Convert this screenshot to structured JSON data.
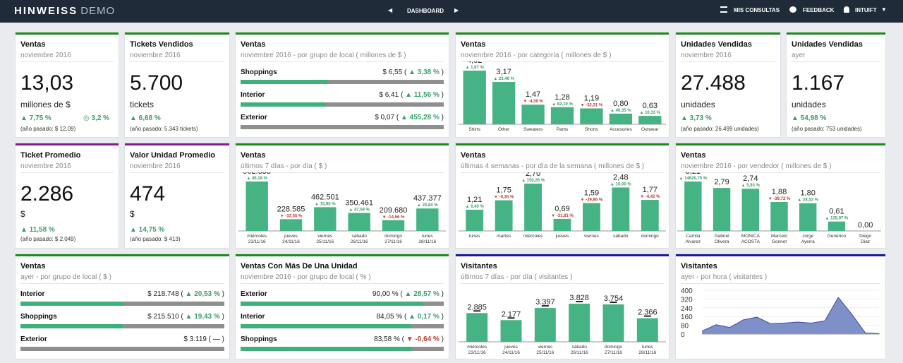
{
  "header": {
    "logo": "HINWEISS",
    "logo_demo": "DEMO",
    "center_label": "DASHBOARD",
    "mis_consultas": "MIS CONSULTAS",
    "feedback": "FEEDBACK",
    "user": "INTUIFT"
  },
  "colors": {
    "bar": "#45b384",
    "green_border": "#1a8a1a",
    "purple_border": "#8a1a8f",
    "blue_border": "#1a1aa0",
    "topbar": "#1f2b38"
  },
  "kpi": {
    "ventas": {
      "title": "Ventas",
      "sub": "noviembre 2016",
      "value": "13,03",
      "unit": "millones de $",
      "chg": "▲ 7,75 %",
      "chg2": "◎ 3,2 %",
      "prev": "(año pasado: $ 12,09)"
    },
    "tickets": {
      "title": "Tickets Vendidos",
      "sub": "noviembre 2016",
      "value": "5.700",
      "unit": "tickets",
      "chg": "▲ 6,68 %",
      "prev": "(año pasado: 5.343 tickets)"
    },
    "unidades_mes": {
      "title": "Unidades Vendidas",
      "sub": "noviembre 2016",
      "value": "27.488",
      "unit": "unidades",
      "chg": "▲ 3,73 %",
      "prev": "(año pasado: 26.499 unidades)"
    },
    "unidades_ayer": {
      "title": "Unidades Vendidas",
      "sub": "ayer",
      "value": "1.167",
      "unit": "unidades",
      "chg": "▲ 54,98 %",
      "prev": "(año pasado: 753 unidades)"
    },
    "ticket_prom": {
      "title": "Ticket Promedio",
      "sub": "noviembre 2016",
      "value": "2.286",
      "unit": "$",
      "chg": "▲ 11,58 %",
      "prev": "(año pasado: $ 2.049)"
    },
    "valor_unidad": {
      "title": "Valor Unidad Promedio",
      "sub": "noviembre 2016",
      "value": "474",
      "unit": "$",
      "chg": "▲ 14,75 %",
      "prev": "(año pasado: $ 413)"
    }
  },
  "lists": {
    "grupo_local_mes": {
      "title": "Ventas",
      "sub": "noviembre 2016 - por grupo de local ( millones de $ )",
      "rows": [
        {
          "label": "Shoppings",
          "value": "$ 6,55",
          "chg": "▲ 3,38 %",
          "dir": "up",
          "frac": 0.43
        },
        {
          "label": "Interior",
          "value": "$ 6,41",
          "chg": "▲ 11,56 %",
          "dir": "up",
          "frac": 0.42
        },
        {
          "label": "Exterior",
          "value": "$ 0,07",
          "chg": "▲ 455,28 %",
          "dir": "up",
          "frac": 0.005
        }
      ]
    },
    "grupo_local_ayer": {
      "title": "Ventas",
      "sub": "ayer - por grupo de local ( $ )",
      "rows": [
        {
          "label": "Interior",
          "value": "$ 218.748",
          "chg": "▲ 20,53 %",
          "dir": "up",
          "frac": 0.5
        },
        {
          "label": "Shoppings",
          "value": "$ 215.510",
          "chg": "▲ 19,43 %",
          "dir": "up",
          "frac": 0.5
        },
        {
          "label": "Exterior",
          "value": "$ 3.119",
          "chg": "—",
          "dir": "flat",
          "frac": 0.0
        }
      ]
    },
    "mas_unidad": {
      "title": "Ventas Con Más De Una Unidad",
      "sub": "noviembre 2016 - por grupo de local ( % )",
      "rows": [
        {
          "label": "Exterior",
          "value": "90,00 %",
          "chg": "▲ 28,57 %",
          "dir": "up",
          "frac": 0.9
        },
        {
          "label": "Interior",
          "value": "84,05 %",
          "chg": "▲ 0,17 %",
          "dir": "up",
          "frac": 0.84
        },
        {
          "label": "Shoppings",
          "value": "83,58 %",
          "chg": "▼ -0,64 %",
          "dir": "down",
          "frac": 0.84
        }
      ]
    }
  },
  "chart_data": [
    {
      "id": "categoria",
      "type": "bar",
      "title": "Ventas",
      "subtitle": "noviembre 2016 - por categoría ( millones de $ )",
      "categories": [
        "Shirts",
        "Other",
        "Sweaters",
        "Pants",
        "Shorts",
        "Accesories",
        "Outwear"
      ],
      "values": [
        4.02,
        3.17,
        1.47,
        1.28,
        1.19,
        0.8,
        0.63
      ],
      "labels": [
        "4,02",
        "3,17",
        "1,47",
        "1,28",
        "1,19",
        "0,80",
        "0,63"
      ],
      "changes": [
        "▲ 1,67 %",
        "▲ 23,46 %",
        "▼ -4,39 %",
        "▲ 82,19 %",
        "▼ -32,31 %",
        "▲ 40,35 %",
        "▲ 10,33 %"
      ],
      "dirs": [
        "up",
        "up",
        "down",
        "up",
        "down",
        "up",
        "up"
      ],
      "ylim": [
        0,
        4.02
      ]
    },
    {
      "id": "dia",
      "type": "bar",
      "title": "Ventas",
      "subtitle": "últimos 7 días - por día ( $ )",
      "categories": [
        "miércoles 23/11/16",
        "jueves 24/11/16",
        "viernes 25/11/16",
        "sábado 26/11/16",
        "domingo 27/11/16",
        "lunes 28/11/16"
      ],
      "values": [
        962833,
        228585,
        462501,
        350461,
        209680,
        437377
      ],
      "labels": [
        "962.833",
        "228.585",
        "462.501",
        "350.461",
        "209.680",
        "437.377"
      ],
      "changes": [
        "▲ 45,18 %",
        "▼ -32,55 %",
        "▲ 15,95 %",
        "▲ 47,59 %",
        "▼ -14,56 %",
        "▲ 20,84 %"
      ],
      "dirs": [
        "up",
        "down",
        "up",
        "up",
        "down",
        "up"
      ],
      "ylim": [
        0,
        962833
      ]
    },
    {
      "id": "semana",
      "type": "bar",
      "title": "Ventas",
      "subtitle": "últimas 4 semanas - por día de la semana ( millones de $ )",
      "categories": [
        "lunes",
        "martes",
        "miércoles",
        "jueves",
        "viernes",
        "sábado",
        "domingo"
      ],
      "values": [
        1.21,
        1.75,
        2.7,
        0.69,
        1.59,
        2.48,
        1.77
      ],
      "labels": [
        "1,21",
        "1,75",
        "2,70",
        "0,69",
        "1,59",
        "2,48",
        "1,77"
      ],
      "changes": [
        "▲ 6,40 %",
        "▼ -0,35 %",
        "▲ 150,26 %",
        "▼ -31,81 %",
        "▼ -29,86 %",
        "▲ 10,00 %",
        "▼ -4,42 %"
      ],
      "dirs": [
        "up",
        "down",
        "up",
        "down",
        "down",
        "up",
        "down"
      ],
      "ylim": [
        0,
        2.7
      ]
    },
    {
      "id": "vendedor",
      "type": "bar",
      "title": "Ventas",
      "subtitle": "noviembre 2016 - por vendedor ( millones de $ )",
      "categories": [
        "Camila Alvarez",
        "Gabriel Olivera",
        "MONICA ACOSTA",
        "Marcelo Gonnet",
        "Jorge Ayerra",
        "Genérico",
        "Diego Diaz"
      ],
      "values": [
        3.21,
        2.79,
        2.74,
        1.88,
        1.8,
        0.61,
        0.0
      ],
      "labels": [
        "3,21",
        "2,79",
        "2,74",
        "1,88",
        "1,80",
        "0,61",
        "0,00"
      ],
      "changes": [
        "▲ 14620,75 %",
        "",
        "▲ 5,93 %",
        "▼ -39,72 %",
        "▲ 28,53 %",
        "▲ 135,97 %",
        ""
      ],
      "dirs": [
        "up",
        "none",
        "up",
        "down",
        "up",
        "up",
        "none"
      ],
      "ylim": [
        0,
        3.21
      ]
    },
    {
      "id": "visitantes_dia",
      "type": "bar",
      "title": "Visitantes",
      "subtitle": "últimos 7 días - por día ( visitantes )",
      "categories": [
        "miércoles 23/11/16",
        "jueves 24/11/16",
        "viernes 25/11/16",
        "sábado 26/11/16",
        "domingo 27/11/16",
        "lunes 28/11/16"
      ],
      "values": [
        2885,
        2177,
        3397,
        3828,
        3754,
        2366
      ],
      "labels": [
        "2.885",
        "2.177",
        "3.397",
        "3.828",
        "3.754",
        "2.366"
      ],
      "ylim": [
        0,
        3828
      ]
    },
    {
      "id": "visitantes_hora",
      "type": "area",
      "title": "Visitantes",
      "subtitle": "ayer - por hora ( visitantes )",
      "y_ticks": [
        "400",
        "320",
        "240",
        "160",
        "80",
        "0"
      ],
      "ylim": [
        0,
        400
      ],
      "values": [
        30,
        85,
        60,
        130,
        155,
        95,
        100,
        110,
        100,
        120,
        335,
        180,
        10,
        5
      ]
    }
  ]
}
